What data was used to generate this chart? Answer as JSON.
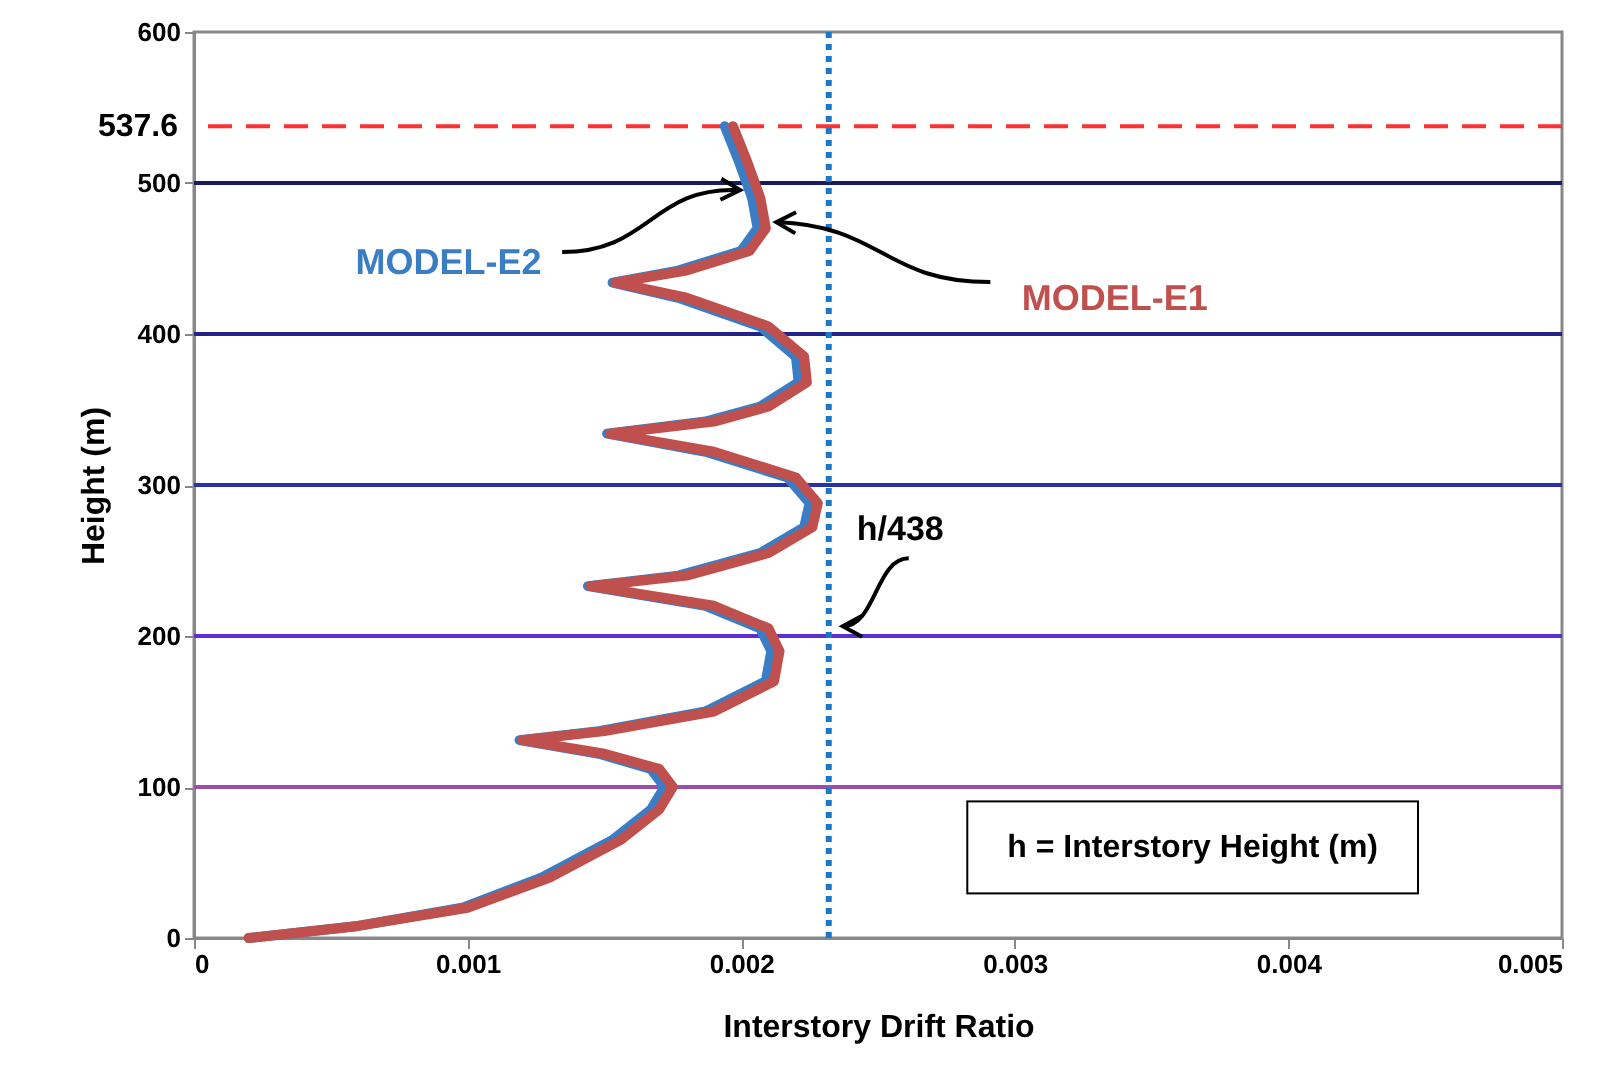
{
  "chart_data": {
    "type": "line",
    "xlabel": "Interstory Drift Ratio",
    "ylabel": "Height (m)",
    "xlim": [
      0,
      0.005
    ],
    "xticks": [
      0,
      0.001,
      0.002,
      0.003,
      0.004,
      0.005
    ],
    "ylim": [
      0,
      600
    ],
    "yticks": [
      0,
      100,
      200,
      300,
      400,
      500,
      600
    ],
    "line_style": "solid",
    "marker": "none",
    "series": [
      {
        "name": "MODEL-E2",
        "color": "#3b7dc4",
        "x": [
          0.0002,
          0.0006,
          0.00098,
          0.00127,
          0.00153,
          0.00167,
          0.00172,
          0.00167,
          0.00148,
          0.00119,
          0.00148,
          0.00187,
          0.00209,
          0.00211,
          0.00207,
          0.00187,
          0.00144,
          0.00177,
          0.00207,
          0.00223,
          0.00225,
          0.00217,
          0.00187,
          0.00151,
          0.00187,
          0.00207,
          0.00221,
          0.0022,
          0.00207,
          0.00177,
          0.00153,
          0.00177,
          0.002,
          0.00206,
          0.00204,
          0.00199,
          0.00194
        ],
        "values": [
          0,
          8,
          20,
          40,
          65,
          85,
          100,
          112,
          122,
          131,
          137,
          150,
          170,
          190,
          205,
          220,
          233,
          240,
          255,
          272,
          288,
          305,
          322,
          334,
          342,
          352,
          368,
          385,
          405,
          424,
          434,
          442,
          455,
          470,
          490,
          515,
          537.6
        ]
      },
      {
        "name": "MODEL-E1",
        "color": "#c0504d",
        "x": [
          0.0002,
          0.0006,
          0.001,
          0.0013,
          0.00156,
          0.0017,
          0.00175,
          0.0017,
          0.0015,
          0.0012,
          0.0015,
          0.0019,
          0.00212,
          0.00214,
          0.0021,
          0.0019,
          0.00145,
          0.0018,
          0.0021,
          0.00226,
          0.00228,
          0.0022,
          0.0019,
          0.00152,
          0.0019,
          0.0021,
          0.00224,
          0.00223,
          0.0021,
          0.0018,
          0.00154,
          0.0018,
          0.00203,
          0.00209,
          0.00207,
          0.00202,
          0.00197
        ],
        "values": [
          0,
          8,
          20,
          40,
          65,
          85,
          100,
          112,
          122,
          131,
          137,
          150,
          170,
          190,
          205,
          220,
          233,
          240,
          255,
          272,
          288,
          305,
          322,
          334,
          342,
          352,
          368,
          385,
          405,
          424,
          434,
          442,
          455,
          470,
          490,
          515,
          537.6
        ]
      }
    ],
    "ref_lines": [
      {
        "axis": "y",
        "value": 100,
        "label": null,
        "color": "#9b4fa8",
        "line_style": "solid"
      },
      {
        "axis": "y",
        "value": 200,
        "label": null,
        "color": "#5b2fd0",
        "line_style": "solid"
      },
      {
        "axis": "y",
        "value": 300,
        "label": null,
        "color": "#2b2fa8",
        "line_style": "solid"
      },
      {
        "axis": "y",
        "value": 400,
        "label": null,
        "color": "#23238a",
        "line_style": "solid"
      },
      {
        "axis": "y",
        "value": 500,
        "label": null,
        "color": "#1a1a5e",
        "line_style": "solid"
      },
      {
        "axis": "y",
        "value": 537.6,
        "label": "537.6",
        "color": "#ff3030",
        "line_style": "dashed"
      },
      {
        "axis": "x",
        "value": 0.00232,
        "label": "h/438",
        "color": "#1a7ac8",
        "line_style": "dotted"
      }
    ],
    "annotations": [
      "h = Interstory Height (m)"
    ]
  }
}
